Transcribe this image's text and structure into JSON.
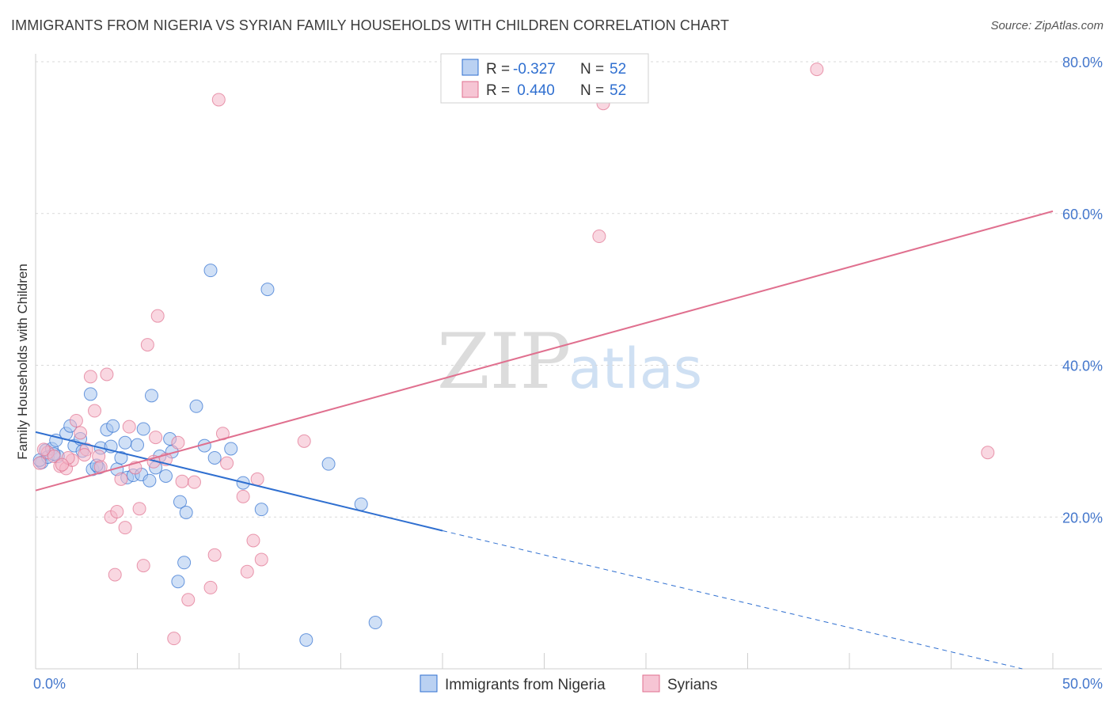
{
  "title": "IMMIGRANTS FROM NIGERIA VS SYRIAN FAMILY HOUSEHOLDS WITH CHILDREN CORRELATION CHART",
  "source": "Source: ZipAtlas.com",
  "watermark": {
    "zip": "ZIP",
    "atlas": "atlas"
  },
  "colors": {
    "blue": "#2f6fd0",
    "blue_fill": "#a9c6ef",
    "pink": "#e0708f",
    "pink_fill": "#f4b6c9",
    "grid": "#d9d9d9",
    "tick": "#4477cc"
  },
  "legend": {
    "rows": [
      {
        "r_label": "R =",
        "r_value": "-0.327",
        "n_label": "N =",
        "n_value": "52"
      },
      {
        "r_label": "R =",
        "r_value": " 0.440",
        "n_label": "N =",
        "n_value": "52"
      }
    ]
  },
  "bottom_legend": [
    "Immigrants from Nigeria",
    "Syrians"
  ],
  "chart_data": {
    "type": "scatter",
    "title": "IMMIGRANTS FROM NIGERIA VS SYRIAN FAMILY HOUSEHOLDS WITH CHILDREN CORRELATION CHART",
    "xlabel": "",
    "ylabel": "Family Households with Children",
    "xlim": [
      0,
      50
    ],
    "ylim": [
      0,
      80
    ],
    "x_tick_labels": [
      "0.0%",
      "50.0%"
    ],
    "y_ticks": [
      20,
      40,
      60,
      80
    ],
    "y_tick_labels": [
      "20.0%",
      "40.0%",
      "60.0%",
      "80.0%"
    ],
    "series": [
      {
        "name": "Immigrants from Nigeria",
        "color": "#2f6fd0",
        "points": [
          [
            0.3,
            27.2
          ],
          [
            0.5,
            28.8
          ],
          [
            0.6,
            27.9
          ],
          [
            0.8,
            29.0
          ],
          [
            1.0,
            30.1
          ],
          [
            1.1,
            28.0
          ],
          [
            1.5,
            31.0
          ],
          [
            1.7,
            32.0
          ],
          [
            1.9,
            29.4
          ],
          [
            2.2,
            30.3
          ],
          [
            2.3,
            28.7
          ],
          [
            2.7,
            36.2
          ],
          [
            2.8,
            26.3
          ],
          [
            3.1,
            26.5
          ],
          [
            3.2,
            29.1
          ],
          [
            3.5,
            31.5
          ],
          [
            3.7,
            29.3
          ],
          [
            3.8,
            32.0
          ],
          [
            4.0,
            26.3
          ],
          [
            4.2,
            27.8
          ],
          [
            4.4,
            29.8
          ],
          [
            4.5,
            25.2
          ],
          [
            4.8,
            25.5
          ],
          [
            5.0,
            29.5
          ],
          [
            5.2,
            25.6
          ],
          [
            5.3,
            31.6
          ],
          [
            5.7,
            36.0
          ],
          [
            5.9,
            26.5
          ],
          [
            6.1,
            28.0
          ],
          [
            6.4,
            25.4
          ],
          [
            6.6,
            30.3
          ],
          [
            6.7,
            28.6
          ],
          [
            7.1,
            22.0
          ],
          [
            7.3,
            14.0
          ],
          [
            7.4,
            20.6
          ],
          [
            7.9,
            34.6
          ],
          [
            7.0,
            11.5
          ],
          [
            8.3,
            29.4
          ],
          [
            8.6,
            52.5
          ],
          [
            8.8,
            27.8
          ],
          [
            10.2,
            24.5
          ],
          [
            11.1,
            21.0
          ],
          [
            11.4,
            50.0
          ],
          [
            13.3,
            3.8
          ],
          [
            14.4,
            27.0
          ],
          [
            16.0,
            21.7
          ],
          [
            16.7,
            6.1
          ],
          [
            0.2,
            27.5
          ],
          [
            0.9,
            28.3
          ],
          [
            3.0,
            26.8
          ],
          [
            5.6,
            24.8
          ],
          [
            9.6,
            29.0
          ]
        ]
      },
      {
        "name": "Syrians",
        "color": "#e0708f",
        "points": [
          [
            0.2,
            27.1
          ],
          [
            0.6,
            28.5
          ],
          [
            0.9,
            28.0
          ],
          [
            1.2,
            26.7
          ],
          [
            1.5,
            26.4
          ],
          [
            1.8,
            27.5
          ],
          [
            2.0,
            32.7
          ],
          [
            2.2,
            31.1
          ],
          [
            2.5,
            28.9
          ],
          [
            2.7,
            38.5
          ],
          [
            2.9,
            34.0
          ],
          [
            3.1,
            28.0
          ],
          [
            3.2,
            26.6
          ],
          [
            3.5,
            38.8
          ],
          [
            3.7,
            20.0
          ],
          [
            4.0,
            20.7
          ],
          [
            4.2,
            25.0
          ],
          [
            4.4,
            18.6
          ],
          [
            4.6,
            31.9
          ],
          [
            4.9,
            26.5
          ],
          [
            5.1,
            21.1
          ],
          [
            5.3,
            13.6
          ],
          [
            5.5,
            42.7
          ],
          [
            5.9,
            30.5
          ],
          [
            6.0,
            46.5
          ],
          [
            6.4,
            27.6
          ],
          [
            7.0,
            29.8
          ],
          [
            7.2,
            24.7
          ],
          [
            7.5,
            9.1
          ],
          [
            7.8,
            24.6
          ],
          [
            8.6,
            10.7
          ],
          [
            8.8,
            15.0
          ],
          [
            9.0,
            75.0
          ],
          [
            9.2,
            31.0
          ],
          [
            9.4,
            27.1
          ],
          [
            10.2,
            22.7
          ],
          [
            10.4,
            12.8
          ],
          [
            10.7,
            16.9
          ],
          [
            10.9,
            25.0
          ],
          [
            11.1,
            14.4
          ],
          [
            13.2,
            30.0
          ],
          [
            27.7,
            57.0
          ],
          [
            27.9,
            74.5
          ],
          [
            38.4,
            79.0
          ],
          [
            46.8,
            28.5
          ],
          [
            6.8,
            4.0
          ],
          [
            3.9,
            12.4
          ],
          [
            1.6,
            27.8
          ],
          [
            2.4,
            28.2
          ],
          [
            0.4,
            28.9
          ],
          [
            1.3,
            26.9
          ],
          [
            5.8,
            27.3
          ]
        ]
      }
    ],
    "trend_lines": [
      {
        "series": "Immigrants from Nigeria",
        "x": [
          0,
          20
        ],
        "y": [
          31.2,
          18.2
        ],
        "dashed_extension": {
          "x": [
            20,
            48.5
          ],
          "y": [
            18.2,
            0
          ]
        }
      },
      {
        "series": "Syrians",
        "x": [
          0,
          50
        ],
        "y": [
          23.5,
          60.3
        ]
      }
    ]
  }
}
